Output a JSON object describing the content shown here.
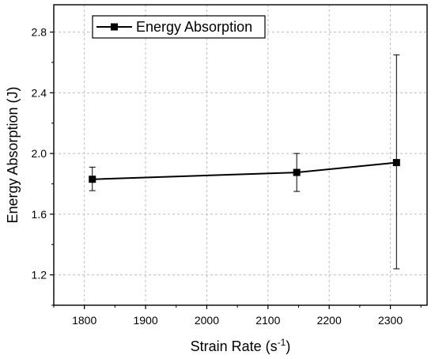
{
  "chart_data": {
    "type": "line",
    "xlabel": "Strain Rate (s",
    "xlabel_sup": "-1",
    "xlabel_end": ")",
    "ylabel": "Energy Absorption (J)",
    "xlim": [
      1750,
      2360
    ],
    "ylim": [
      1.0,
      2.98
    ],
    "xticks": [
      1800,
      1900,
      2000,
      2100,
      2200,
      2300
    ],
    "yticks": [
      1.2,
      1.6,
      2.0,
      2.4,
      2.8
    ],
    "xtick_labels": [
      "1800",
      "1900",
      "2000",
      "2100",
      "2200",
      "2300"
    ],
    "ytick_labels": [
      "1.2",
      "1.6",
      "2.0",
      "2.4",
      "2.8"
    ],
    "grid": true,
    "legend_position": "top-left",
    "series": [
      {
        "name": "Energy Absorption",
        "color": "#000000",
        "marker": "square",
        "x": [
          1813,
          2147,
          2310
        ],
        "y": [
          1.83,
          1.875,
          1.94
        ],
        "err_low": [
          1.755,
          1.75,
          1.24
        ],
        "err_high": [
          1.91,
          2.0,
          2.65
        ]
      }
    ]
  }
}
